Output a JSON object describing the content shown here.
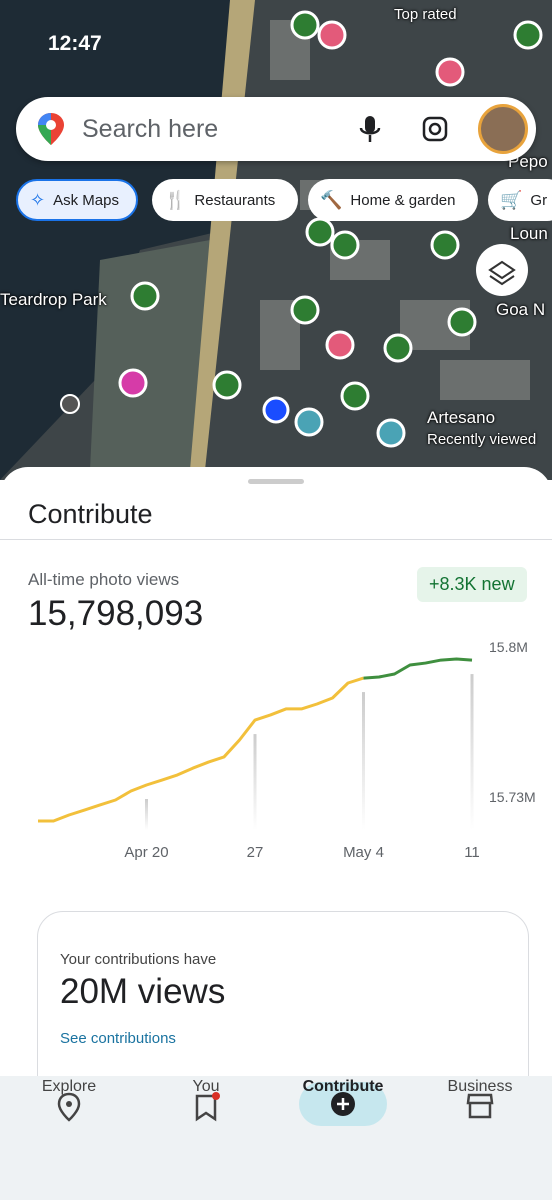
{
  "status_bar": {
    "time": "12:47"
  },
  "search": {
    "placeholder": "Search here"
  },
  "chips": [
    "Ask Maps",
    "Restaurants",
    "Home & garden",
    "Gr"
  ],
  "map_labels": {
    "top_rated": "Top rated",
    "park": "Teardrop Park",
    "goa": "Goa N",
    "artesano": "Artesano",
    "recent": "Recently viewed",
    "pepo": "Pepo",
    "loun": "Loun"
  },
  "sheet": {
    "title": "Contribute"
  },
  "stats": {
    "label": "All-time photo views",
    "value": "15,798,093",
    "badge": "+8.3K new"
  },
  "chart_data": {
    "type": "line",
    "categories": [
      null,
      null,
      null,
      null,
      null,
      null,
      null,
      "Apr 20",
      null,
      null,
      null,
      null,
      null,
      null,
      "27",
      null,
      null,
      null,
      null,
      null,
      null,
      "May 4",
      null,
      null,
      null,
      null,
      null,
      null,
      "11"
    ],
    "series": [
      {
        "color": "#f2c03b",
        "values": [
          15.7188,
          15.7188,
          15.7216,
          15.7239,
          15.7263,
          15.7286,
          15.7328,
          15.7356,
          15.7379,
          15.7403,
          15.7435,
          15.7463,
          15.7487,
          15.7566,
          15.7659,
          15.7683,
          15.7711,
          15.7711,
          15.7734,
          15.7762,
          15.7832,
          15.7855,
          null,
          null,
          null,
          null,
          null,
          null,
          null
        ]
      },
      {
        "color": "#3f8f3f",
        "values": [
          null,
          null,
          null,
          null,
          null,
          null,
          null,
          null,
          null,
          null,
          null,
          null,
          null,
          null,
          null,
          null,
          null,
          null,
          null,
          null,
          null,
          15.7855,
          15.786,
          15.7874,
          15.7916,
          15.7925,
          15.7939,
          15.7944,
          15.7939
        ]
      }
    ],
    "ylim": [
      15.71,
      15.8
    ],
    "yticks": [
      {
        "value": 15.8,
        "label": "15.8M"
      },
      {
        "value": 15.73,
        "label": "15.73M"
      }
    ]
  },
  "card": {
    "caption": "Your contributions have",
    "value": "20M views",
    "link": "See contributions"
  },
  "nav": [
    "Explore",
    "You",
    "Contribute",
    "Business"
  ]
}
